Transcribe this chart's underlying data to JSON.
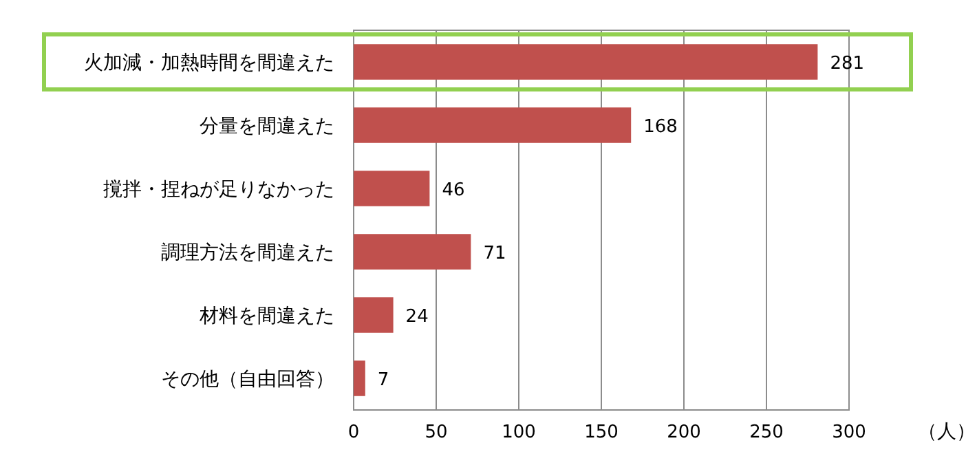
{
  "chart_data": {
    "type": "bar",
    "orientation": "horizontal",
    "xlabel": "（人）",
    "categories": [
      "火加減・加熱時間を間違えた",
      "分量を間違えた",
      "撹拌・捏ねが足りなかった",
      "調理方法を間違えた",
      "材料を間違えた",
      "その他（自由回答）"
    ],
    "values": [
      281,
      168,
      46,
      71,
      24,
      7
    ],
    "color": "#c0504d",
    "xlim": [
      0,
      300
    ],
    "xticks": [
      0,
      50,
      100,
      150,
      200,
      250,
      300
    ],
    "grid": "x",
    "data_labels": true
  }
}
